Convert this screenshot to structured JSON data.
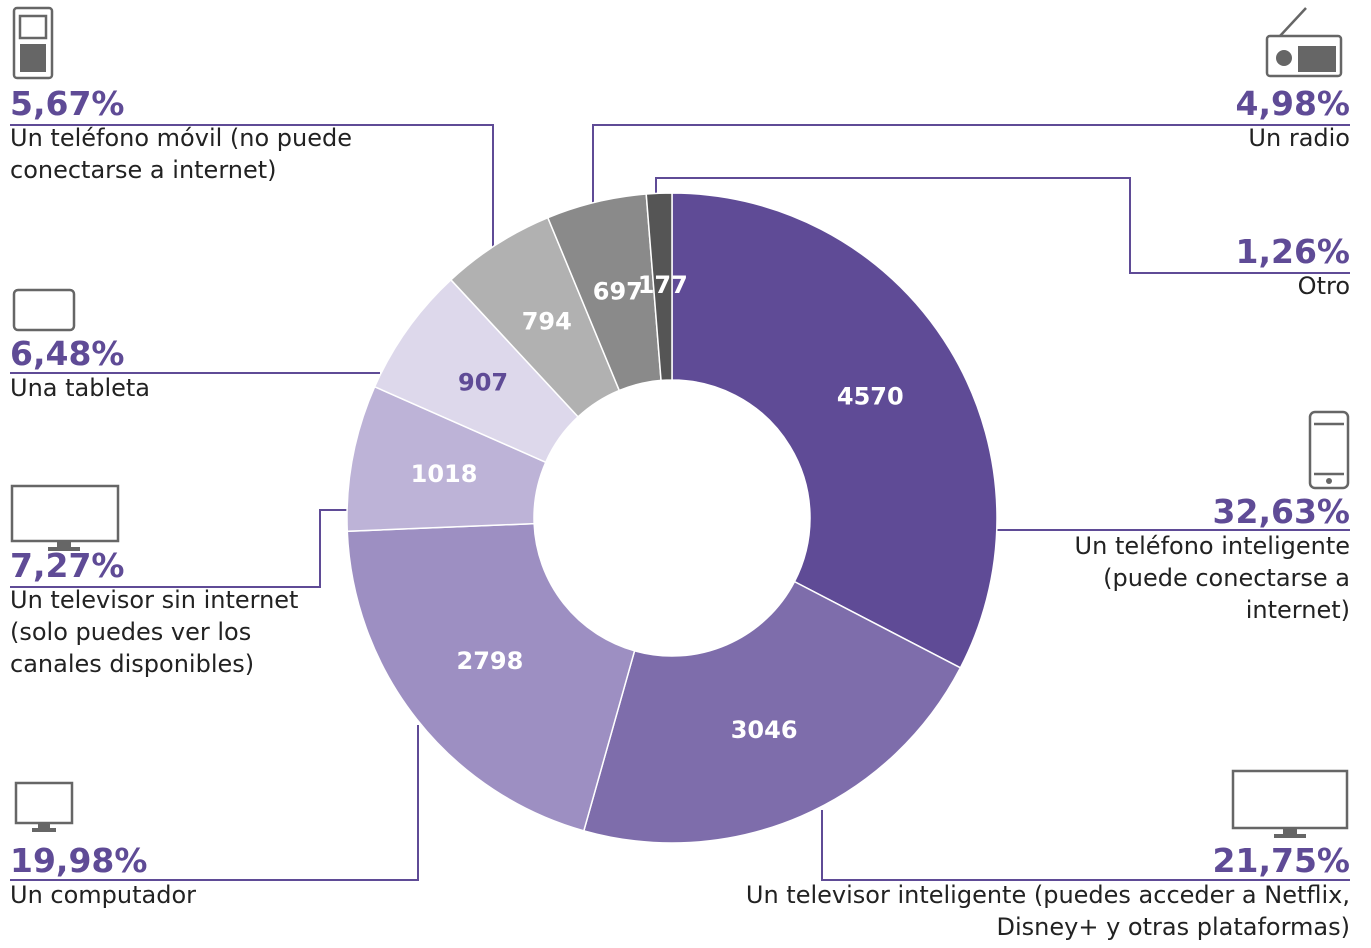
{
  "chart_data": {
    "type": "donut",
    "categories": [
      "Un teléfono inteligente (puede conectarse a internet)",
      "Un televisor inteligente (puedes acceder a Netflix, Disney+ y otras plataformas)",
      "Un computador",
      "Un televisor sin internet (solo puedes ver los canales disponibles)",
      "Una tableta",
      "Un teléfono móvil (no puede conectarse a internet)",
      "Un radio",
      "Otro"
    ],
    "values": [
      4570,
      3046,
      2798,
      1018,
      907,
      794,
      697,
      177
    ],
    "percent_labels": [
      "32,63%",
      "21,75%",
      "19,98%",
      "7,27%",
      "6,48%",
      "5,67%",
      "4,98%",
      "1,26%"
    ],
    "colors": [
      "#5f4b96",
      "#7e6dab",
      "#9d8fc2",
      "#bdb3d7",
      "#ddd8eb",
      "#b1b1b1",
      "#8a8a8a",
      "#555555"
    ]
  }
}
